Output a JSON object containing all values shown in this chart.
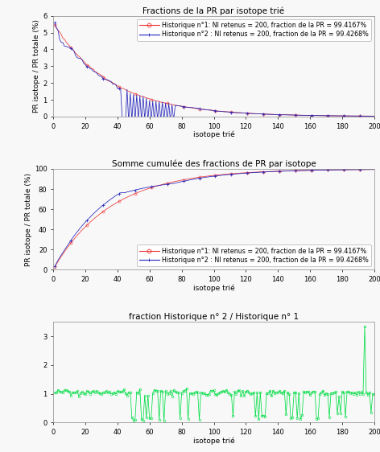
{
  "title1": "Fractions de la PR par isotope trié",
  "title2": "Somme cumulée des fractions de PR par isotope",
  "title3": "fraction Historique n° 2 / Historique n° 1",
  "xlabel": "isotope trié",
  "ylabel1": "PR isotope / PR totale (%)",
  "ylabel2": "PR isotope / PR totale (%)",
  "legend1_h1": "Historique n°1: NI retenus = 200, fraction de la PR = 99.4167%",
  "legend1_h2": "Historique n°2 : NI retenus = 200, fraction de la PR = 99.4268%",
  "color_h1": "#ee3333",
  "color_h2": "#2222bb",
  "color_ratio": "#00dd44",
  "N": 200,
  "ylim1": [
    0,
    6
  ],
  "ylim2": [
    0,
    100
  ],
  "ylim3": [
    0,
    3.5
  ],
  "bg_color": "#f8f8f8",
  "title_fontsize": 7.5,
  "axis_fontsize": 6.5,
  "legend_fontsize": 5.8,
  "tick_fontsize": 6
}
